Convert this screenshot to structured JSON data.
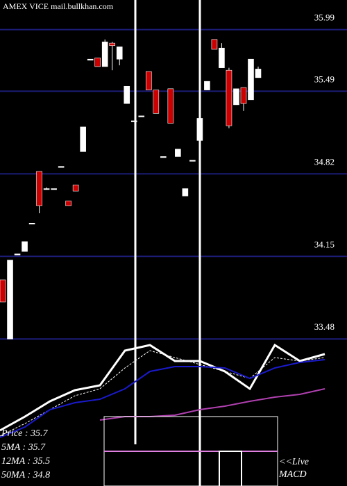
{
  "chart_data": [
    {
      "type": "candlestick",
      "title": "AMEX VICE mail.bullkhan.com",
      "open": [
        33.96,
        33.48,
        34.17,
        34.19,
        34.42,
        34.84,
        34.7,
        34.7,
        34.88,
        34.6,
        34.73,
        35.0,
        35.75,
        35.76,
        35.69,
        35.88,
        35.75,
        35.39,
        35.25,
        35.29,
        35.65,
        35.5,
        34.96,
        35.51,
        34.96,
        34.64,
        34.93,
        35.09,
        35.5,
        35.91,
        35.68,
        35.66,
        35.38,
        35.52,
        35.42,
        35.6
      ],
      "high": [
        33.96,
        34.12,
        34.17,
        34.27,
        34.42,
        34.84,
        34.71,
        34.7,
        34.88,
        34.6,
        34.73,
        35.2,
        35.75,
        35.76,
        35.91,
        35.89,
        35.85,
        35.53,
        35.25,
        35.29,
        35.65,
        35.5,
        34.96,
        35.51,
        35.02,
        34.7,
        34.93,
        35.39,
        35.57,
        35.91,
        35.88,
        35.68,
        35.51,
        35.52,
        35.75,
        35.69
      ],
      "low": [
        33.78,
        33.48,
        34.17,
        34.19,
        34.42,
        34.5,
        34.69,
        34.7,
        34.88,
        34.56,
        34.68,
        35.0,
        35.75,
        35.69,
        35.69,
        35.66,
        35.7,
        35.39,
        35.25,
        35.29,
        35.5,
        35.31,
        34.96,
        35.23,
        34.96,
        34.64,
        34.93,
        35.09,
        35.5,
        35.83,
        35.68,
        35.19,
        35.38,
        35.33,
        35.42,
        35.6
      ],
      "close": [
        33.78,
        34.12,
        34.17,
        34.27,
        34.42,
        34.56,
        34.7,
        34.7,
        34.88,
        34.56,
        34.68,
        35.2,
        35.75,
        35.69,
        35.89,
        35.86,
        35.85,
        35.53,
        35.25,
        35.29,
        35.5,
        35.31,
        34.96,
        35.23,
        35.02,
        34.7,
        34.93,
        35.27,
        35.57,
        35.83,
        35.84,
        35.21,
        35.51,
        35.39,
        35.75,
        35.67
      ],
      "up_color": "#ffffff",
      "down_color": "#cc0000",
      "ylim": [
        33.47,
        36.23
      ],
      "yticks": [
        33.48,
        34.15,
        34.82,
        35.49,
        35.99
      ],
      "grid": true,
      "grid_color": "#1c1c78"
    },
    {
      "type": "line",
      "series": [
        {
          "name": "Price : 35.7",
          "color": "#ffffff",
          "values": [
            40,
            50,
            61,
            69,
            72.5,
            97.5,
            101.5,
            90,
            90,
            82.5,
            70,
            101.5,
            90,
            95
          ]
        },
        {
          "name": "5MA : 35.7",
          "color": "#ffffff",
          "dashed": true,
          "values": [
            36,
            45,
            55,
            65,
            70,
            85,
            97.5,
            92.5,
            87.5,
            82.5,
            77.5,
            92.5,
            90,
            92.5
          ]
        },
        {
          "name": "12MA : 35.5",
          "color": "#1a1acc",
          "values": [
            35,
            42.5,
            55,
            60,
            62.5,
            70,
            82.5,
            86,
            86,
            85,
            77.5,
            85,
            89,
            91
          ]
        },
        {
          "name": "50MA : 34.8",
          "color": "#b040b0",
          "values": [
            null,
            null,
            null,
            null,
            47.5,
            50,
            50,
            51,
            55,
            57.5,
            61,
            64,
            66,
            70
          ]
        }
      ],
      "ylim": [
        0,
        100
      ],
      "annotations": [
        "<<Live",
        "MACD"
      ]
    }
  ]
}
